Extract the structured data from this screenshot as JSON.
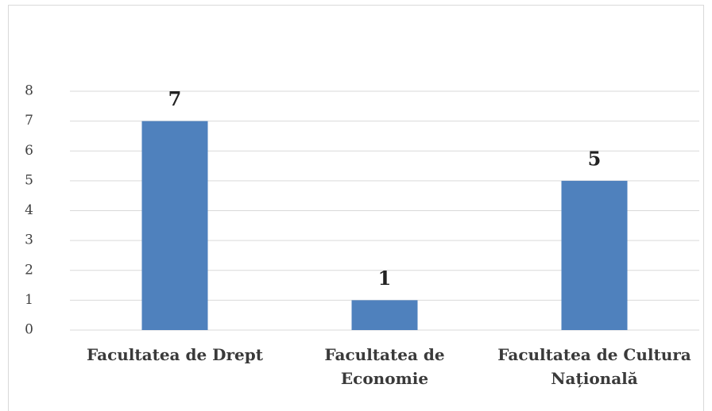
{
  "chart_data": {
    "type": "bar",
    "categories": [
      "Facultatea de Drept",
      "Facultatea de Economie",
      "Facultatea de Cultura Națională"
    ],
    "values": [
      7,
      1,
      5
    ],
    "color": "#4f81bd",
    "ylim": [
      0,
      8
    ],
    "yticks": [
      0,
      1,
      2,
      3,
      4,
      5,
      6,
      7,
      8
    ],
    "grid": true
  }
}
